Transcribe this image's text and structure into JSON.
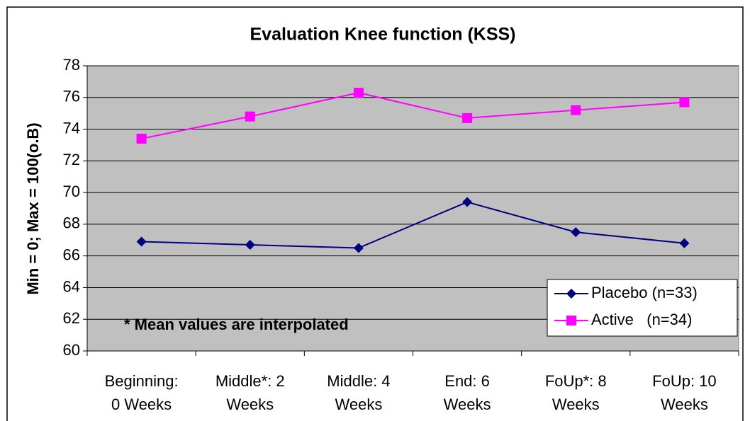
{
  "chart_data": {
    "type": "line",
    "title": "Evaluation Knee function (KSS)",
    "y_label": "Min = 0; Max = 100(o.B)",
    "annotation": "* Mean values are interpolated",
    "categories": [
      [
        "Beginning:",
        "0 Weeks"
      ],
      [
        "Middle*: 2",
        "Weeks"
      ],
      [
        "Middle: 4",
        "Weeks"
      ],
      [
        "End: 6",
        "Weeks"
      ],
      [
        "FoUp*: 8",
        "Weeks"
      ],
      [
        "FoUp: 10",
        "Weeks"
      ]
    ],
    "series": [
      {
        "name": "Placebo (n=33)",
        "color": "#000080",
        "marker": "diamond",
        "values": [
          66.9,
          66.7,
          66.5,
          69.4,
          67.5,
          66.8
        ]
      },
      {
        "name": "Active   (n=34)",
        "color": "#ff00ff",
        "marker": "square",
        "values": [
          73.4,
          74.8,
          76.3,
          74.7,
          75.2,
          75.7
        ]
      }
    ],
    "ylim": [
      60,
      78
    ],
    "yticks": [
      60,
      62,
      64,
      66,
      68,
      70,
      72,
      74,
      76,
      78
    ],
    "grid": true,
    "legend": "lower right",
    "plot_background": "#c0c0c0"
  }
}
